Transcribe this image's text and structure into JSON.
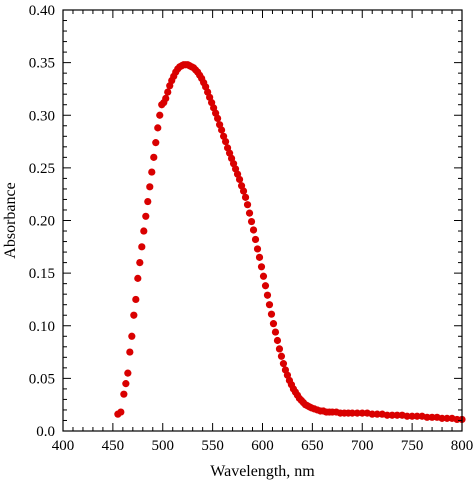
{
  "chart_data": {
    "type": "scatter",
    "title": "",
    "xlabel": "Wavelength, nm",
    "ylabel": "Absorbance",
    "xlim": [
      400,
      800
    ],
    "ylim": [
      0.0,
      0.4
    ],
    "x_ticks": [
      "400",
      "450",
      "500",
      "550",
      "600",
      "650",
      "700",
      "750",
      "800"
    ],
    "y_ticks": [
      "0.0",
      "0.05",
      "0.10",
      "0.15",
      "0.20",
      "0.25",
      "0.30",
      "0.35",
      "0.40"
    ],
    "grid": false,
    "legend": "none",
    "marker_color": "#d90000",
    "series": [
      {
        "x": [
          455,
          458,
          461,
          463,
          465,
          467,
          469,
          471,
          473,
          475,
          477,
          479,
          481,
          483,
          485,
          487,
          489,
          491,
          493,
          495,
          497,
          499,
          501,
          503,
          505,
          507,
          509,
          511,
          513,
          515,
          517,
          519,
          521,
          523,
          525,
          527,
          529,
          531,
          533,
          535,
          537,
          539,
          541,
          543,
          545,
          547,
          549,
          551,
          553,
          555,
          557,
          559,
          561,
          563,
          565,
          567,
          569,
          571,
          573,
          575,
          577,
          579,
          581,
          583,
          585,
          587,
          589,
          591,
          593,
          595,
          597,
          599,
          601,
          603,
          605,
          607,
          609,
          611,
          613,
          615,
          617,
          619,
          621,
          623,
          625,
          627,
          629,
          631,
          633,
          635,
          637,
          639,
          641,
          643,
          645,
          647,
          649,
          652,
          655,
          658,
          661,
          664,
          667,
          670,
          674,
          678,
          682,
          686,
          690,
          695,
          700,
          705,
          710,
          715,
          720,
          725,
          730,
          735,
          740,
          745,
          750,
          755,
          760,
          765,
          770,
          775,
          780,
          785,
          790,
          795,
          800
        ],
        "y": [
          0.016,
          0.018,
          0.035,
          0.045,
          0.055,
          0.075,
          0.09,
          0.11,
          0.125,
          0.145,
          0.16,
          0.175,
          0.19,
          0.204,
          0.218,
          0.232,
          0.246,
          0.26,
          0.274,
          0.288,
          0.3,
          0.31,
          0.312,
          0.316,
          0.322,
          0.328,
          0.333,
          0.337,
          0.341,
          0.344,
          0.346,
          0.347,
          0.348,
          0.348,
          0.348,
          0.347,
          0.346,
          0.345,
          0.343,
          0.341,
          0.338,
          0.335,
          0.331,
          0.327,
          0.322,
          0.317,
          0.312,
          0.307,
          0.302,
          0.297,
          0.291,
          0.286,
          0.28,
          0.275,
          0.269,
          0.264,
          0.259,
          0.254,
          0.249,
          0.244,
          0.239,
          0.233,
          0.228,
          0.222,
          0.215,
          0.207,
          0.199,
          0.191,
          0.182,
          0.173,
          0.165,
          0.156,
          0.147,
          0.138,
          0.129,
          0.12,
          0.111,
          0.102,
          0.094,
          0.086,
          0.078,
          0.071,
          0.064,
          0.058,
          0.053,
          0.048,
          0.044,
          0.04,
          0.037,
          0.034,
          0.031,
          0.029,
          0.027,
          0.025,
          0.024,
          0.023,
          0.022,
          0.021,
          0.02,
          0.019,
          0.019,
          0.018,
          0.018,
          0.018,
          0.018,
          0.017,
          0.017,
          0.017,
          0.017,
          0.017,
          0.017,
          0.017,
          0.016,
          0.016,
          0.016,
          0.015,
          0.015,
          0.015,
          0.015,
          0.014,
          0.014,
          0.014,
          0.014,
          0.013,
          0.013,
          0.013,
          0.012,
          0.012,
          0.012,
          0.011,
          0.011
        ]
      }
    ]
  }
}
